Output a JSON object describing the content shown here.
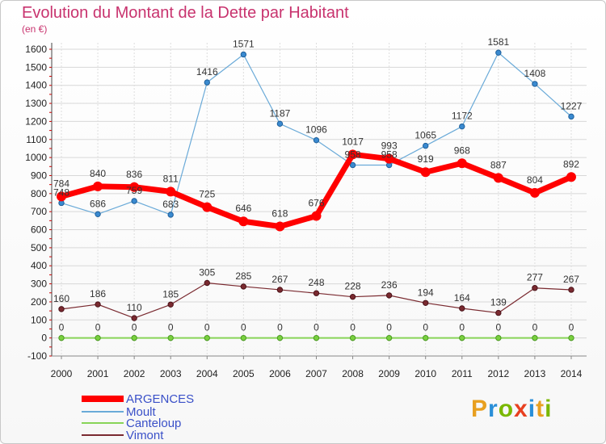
{
  "header": {
    "title": "Evolution du Montant de la Dette par Habitant",
    "unit": "(en €)"
  },
  "logo": {
    "text": "Proxiti",
    "colors": [
      "#e8a020",
      "#2a8fd8",
      "#7ab800",
      "#e84020",
      "#2a8fd8",
      "#e8a020",
      "#7ab800"
    ]
  },
  "chart_data": {
    "type": "line",
    "title": "Evolution du Montant de la Dette par Habitant",
    "ylabel": "(en €)",
    "x": [
      "2000",
      "2001",
      "2002",
      "2003",
      "2004",
      "2005",
      "2006",
      "2007",
      "2008",
      "2009",
      "2010",
      "2011",
      "2012",
      "2013",
      "2014"
    ],
    "ylim": [
      -100,
      1600
    ],
    "yticks": [
      -100,
      0,
      100,
      200,
      300,
      400,
      500,
      600,
      700,
      800,
      900,
      1000,
      1100,
      1200,
      1300,
      1400,
      1500,
      1600
    ],
    "grid": true,
    "legend_position": "bottom-left",
    "series": [
      {
        "name": "ARGENCES",
        "color": "#ff0000",
        "values": [
          784,
          840,
          836,
          811,
          725,
          646,
          618,
          676,
          1017,
          993,
          919,
          968,
          887,
          804,
          892
        ]
      },
      {
        "name": "Moult",
        "color": "#6aaad8",
        "values": [
          748,
          686,
          759,
          683,
          1416,
          1571,
          1187,
          1096,
          958,
          958,
          1065,
          1172,
          1581,
          1408,
          1227
        ]
      },
      {
        "name": "Canteloup",
        "color": "#88d458",
        "values": [
          0,
          0,
          0,
          0,
          0,
          0,
          0,
          0,
          0,
          0,
          0,
          0,
          0,
          0,
          0
        ]
      },
      {
        "name": "Vimont",
        "color": "#7a2a30",
        "values": [
          160,
          186,
          110,
          185,
          305,
          285,
          267,
          248,
          228,
          236,
          194,
          164,
          139,
          277,
          267
        ]
      }
    ]
  }
}
